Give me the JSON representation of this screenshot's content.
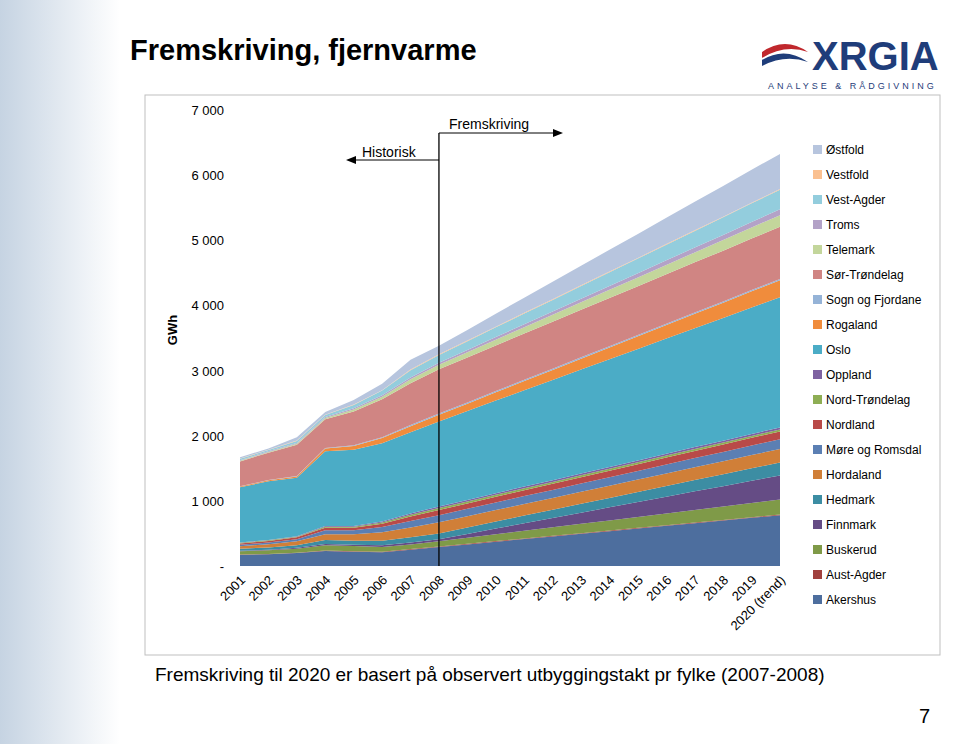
{
  "header": {
    "logo": "XRGIA",
    "logo_tagline": "ANALYSE & RÅDGIVNING"
  },
  "chart_data": {
    "type": "area",
    "title": "Fremskriving, fjernvarme",
    "stacked": true,
    "legend": "right",
    "grid": false,
    "y_label": "GWh",
    "annotations": [
      "Historisk",
      "Fremskriving"
    ],
    "categories": [
      "2001",
      "2002",
      "2003",
      "2004",
      "2005",
      "2006",
      "2007",
      "2008",
      "2009",
      "2010",
      "2011",
      "2012",
      "2013",
      "2014",
      "2015",
      "2016",
      "2017",
      "2018",
      "2019",
      "2020 (trend)"
    ],
    "ylim": [
      0,
      7000
    ],
    "yticks": [
      {
        "value": 0,
        "label": "-"
      },
      {
        "value": 1000,
        "label": "1 000"
      },
      {
        "value": 2000,
        "label": "2 000"
      },
      {
        "value": 3000,
        "label": "3 000"
      },
      {
        "value": 4000,
        "label": "4 000"
      },
      {
        "value": 5000,
        "label": "5 000"
      },
      {
        "value": 6000,
        "label": "6 000"
      },
      {
        "value": 7000,
        "label": "7 000"
      }
    ],
    "series": [
      {
        "name": "Akershus",
        "color": "#4d6e9e",
        "values": [
          170,
          180,
          200,
          230,
          220,
          210,
          250,
          290,
          331,
          372,
          413,
          453,
          494,
          535,
          576,
          617,
          658,
          698,
          739,
          780
        ]
      },
      {
        "name": "Aust-Agder",
        "color": "#a0403d",
        "values": [
          5,
          5,
          5,
          8,
          8,
          8,
          10,
          10,
          10,
          10,
          10,
          10,
          10,
          10,
          10,
          10,
          10,
          10,
          10,
          10
        ]
      },
      {
        "name": "Buskerud",
        "color": "#7f9a48",
        "values": [
          50,
          55,
          60,
          80,
          80,
          75,
          70,
          80,
          93,
          105,
          118,
          130,
          143,
          155,
          168,
          180,
          193,
          205,
          218,
          230
        ]
      },
      {
        "name": "Finnmark",
        "color": "#654c85",
        "values": [
          10,
          10,
          15,
          20,
          20,
          25,
          30,
          30,
          58,
          87,
          115,
          143,
          172,
          200,
          228,
          257,
          285,
          313,
          342,
          370
        ]
      },
      {
        "name": "Hedmark",
        "color": "#3c8da3",
        "values": [
          30,
          35,
          40,
          60,
          60,
          70,
          80,
          90,
          99,
          108,
          118,
          127,
          136,
          145,
          154,
          163,
          173,
          182,
          191,
          200
        ]
      },
      {
        "name": "Hordaland",
        "color": "#d07f38",
        "values": [
          40,
          50,
          60,
          90,
          100,
          130,
          150,
          170,
          173,
          176,
          179,
          182,
          185,
          188,
          191,
          194,
          197,
          200,
          203,
          206
        ]
      },
      {
        "name": "Møre og Romsdal",
        "color": "#5b7fb3",
        "values": [
          20,
          25,
          30,
          60,
          60,
          80,
          100,
          110,
          113,
          117,
          120,
          123,
          127,
          130,
          133,
          137,
          140,
          143,
          147,
          150
        ]
      },
      {
        "name": "Nordland",
        "color": "#b94a48",
        "values": [
          20,
          25,
          30,
          40,
          40,
          50,
          70,
          80,
          83,
          87,
          90,
          93,
          97,
          100,
          103,
          107,
          110,
          113,
          117,
          120
        ]
      },
      {
        "name": "Nord-Trøndelag",
        "color": "#8eae54",
        "values": [
          10,
          10,
          10,
          15,
          15,
          20,
          25,
          30,
          30,
          30,
          30,
          30,
          30,
          30,
          30,
          30,
          30,
          30,
          30,
          30
        ]
      },
      {
        "name": "Oppland",
        "color": "#7e62a1",
        "values": [
          5,
          5,
          5,
          10,
          10,
          15,
          20,
          25,
          25,
          26,
          26,
          27,
          27,
          28,
          28,
          29,
          29,
          30,
          30,
          30
        ]
      },
      {
        "name": "Oslo",
        "color": "#4bacc6",
        "values": [
          850,
          900,
          900,
          1150,
          1170,
          1200,
          1250,
          1305,
          1363,
          1421,
          1479,
          1537,
          1595,
          1653,
          1711,
          1768,
          1826,
          1884,
          1942,
          2000
        ]
      },
      {
        "name": "Rogaland",
        "color": "#f08c3c",
        "values": [
          10,
          15,
          20,
          40,
          60,
          80,
          90,
          100,
          113,
          127,
          140,
          153,
          167,
          180,
          193,
          207,
          220,
          233,
          247,
          260
        ]
      },
      {
        "name": "Sogn og Fjordane",
        "color": "#95b3d7",
        "values": [
          5,
          5,
          5,
          10,
          10,
          15,
          20,
          20,
          20,
          20,
          20,
          20,
          20,
          20,
          20,
          20,
          20,
          20,
          20,
          20
        ]
      },
      {
        "name": "Sør-Trøndelag",
        "color": "#d08583",
        "values": [
          380,
          420,
          480,
          440,
          520,
          580,
          640,
          680,
          690,
          700,
          710,
          720,
          730,
          740,
          750,
          760,
          770,
          780,
          790,
          800
        ]
      },
      {
        "name": "Telemark",
        "color": "#c3d69b",
        "values": [
          10,
          10,
          15,
          20,
          30,
          40,
          60,
          70,
          79,
          88,
          98,
          107,
          116,
          125,
          134,
          143,
          153,
          162,
          171,
          180
        ]
      },
      {
        "name": "Troms",
        "color": "#b3a2c7",
        "values": [
          10,
          10,
          15,
          15,
          20,
          25,
          30,
          30,
          35,
          40,
          45,
          50,
          55,
          60,
          65,
          70,
          75,
          80,
          85,
          90
        ]
      },
      {
        "name": "Vest-Agder",
        "color": "#93cddd",
        "values": [
          20,
          20,
          30,
          30,
          50,
          70,
          110,
          120,
          135,
          150,
          165,
          180,
          195,
          210,
          225,
          240,
          255,
          270,
          285,
          300
        ]
      },
      {
        "name": "Vestfold",
        "color": "#fac090",
        "values": [
          5,
          5,
          5,
          5,
          5,
          5,
          10,
          10,
          10,
          10,
          10,
          10,
          10,
          10,
          10,
          10,
          10,
          10,
          10,
          10
        ]
      },
      {
        "name": "Østfold",
        "color": "#b7c5de",
        "values": [
          20,
          20,
          50,
          40,
          70,
          100,
          150,
          130,
          164,
          198,
          233,
          267,
          301,
          335,
          369,
          403,
          438,
          472,
          506,
          540
        ]
      }
    ]
  },
  "footnote": "Fremskriving til 2020 er basert på observert utbyggingstakt pr fylke (2007-2008)",
  "page_number": "7"
}
